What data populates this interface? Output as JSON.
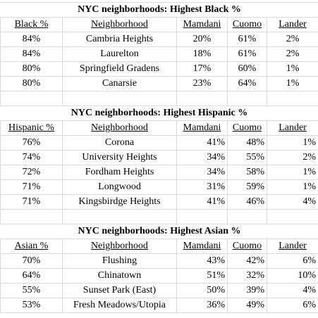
{
  "sections": [
    {
      "title": "NYC neighborhoods: Highest Black %",
      "headers": [
        "Black %",
        "Neighborhood",
        "Mamdani",
        "Cuomo",
        "Lander"
      ],
      "rows": [
        [
          "84%",
          "Cambria Heights",
          "20%",
          "61%",
          "2%"
        ],
        [
          "84%",
          "Laurelton",
          "18%",
          "61%",
          "2%"
        ],
        [
          "80%",
          "Springfield Gradens",
          "17%",
          "60%",
          "1%"
        ],
        [
          "80%",
          "Canarsie",
          "23%",
          "64%",
          "1%"
        ]
      ]
    },
    {
      "title": "NYC neighborhoods: Highest Hispanic %",
      "headers": [
        "Hispanic %",
        "Neighborhood",
        "Mamdani",
        "Cuomo",
        "Lander"
      ],
      "rows": [
        [
          "76%",
          "Corona",
          "41%",
          "48%",
          "1%"
        ],
        [
          "74%",
          "University Heights",
          "34%",
          "55%",
          "2%"
        ],
        [
          "72%",
          "Fordham Heights",
          "34%",
          "58%",
          "1%"
        ],
        [
          "71%",
          "Longwood",
          "31%",
          "59%",
          "1%"
        ],
        [
          "71%",
          "Kingsbirdge Heights",
          "41%",
          "46%",
          "4%"
        ]
      ]
    },
    {
      "title": "NYC neighborhoods: Highest Asian %",
      "headers": [
        "Asian %",
        "Neighborhood",
        "Mamdani",
        "Cuomo",
        "Lander"
      ],
      "rows": [
        [
          "70%",
          "Flushing",
          "43%",
          "42%",
          "6%"
        ],
        [
          "64%",
          "Chinatown",
          "51%",
          "32%",
          "10%"
        ],
        [
          "55%",
          "Sunset Park (East)",
          "50%",
          "39%",
          "4%"
        ],
        [
          "53%",
          "Fresh Meadows/Utopia",
          "36%",
          "49%",
          "6%"
        ]
      ]
    }
  ]
}
